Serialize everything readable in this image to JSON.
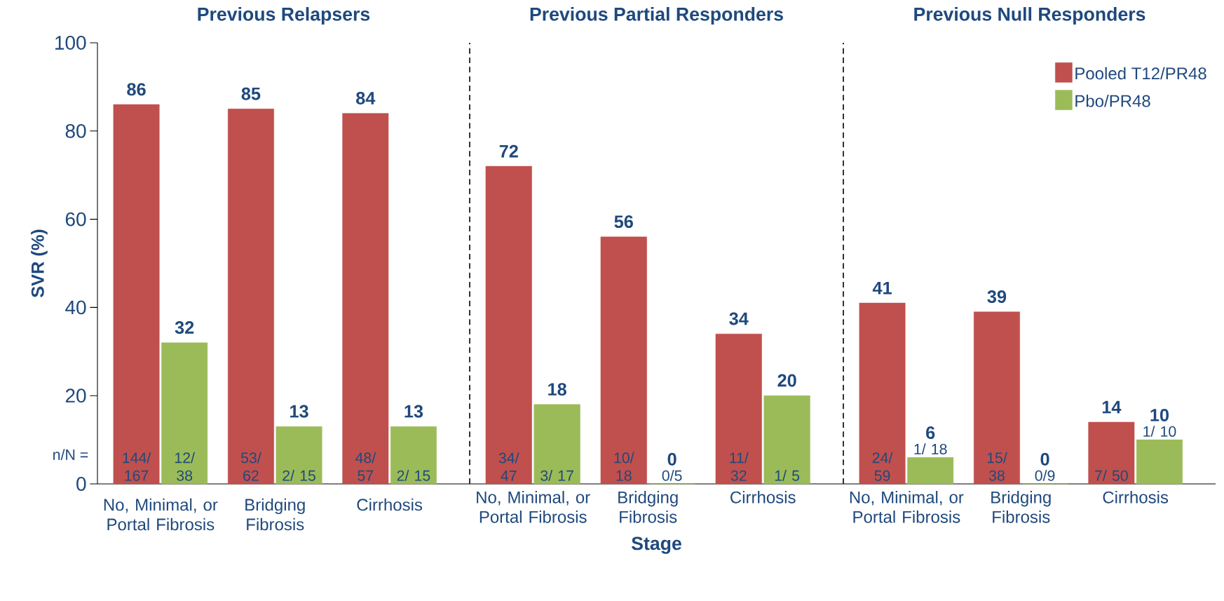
{
  "chart_data": [
    {
      "type": "bar",
      "title": "Previous Relapsers",
      "ylabel": "SVR (%)",
      "categories": [
        "No, Minimal, or Portal Fibrosis",
        "Bridging Fibrosis",
        "Cirrhosis"
      ],
      "series": [
        {
          "color": "#c0504d",
          "values": [
            86,
            85,
            84
          ]
        },
        {
          "color": "#9bbb59",
          "values": [
            32,
            13,
            13
          ]
        }
      ],
      "ylim": [
        0,
        100
      ],
      "yticks": [
        0,
        20,
        40,
        60,
        80,
        100
      ],
      "data_labels": true,
      "annotations": [
        "n/N =",
        "144/ 167",
        "12/ 38",
        "53/ 62",
        "2/ 15",
        "48/ 57",
        "2/ 15"
      ]
    },
    {
      "type": "bar",
      "title": "Previous Partial Responders",
      "xlabel": "Stage",
      "categories": [
        "No, Minimal, or Portal Fibrosis",
        "Bridging Fibrosis",
        "Cirrhosis"
      ],
      "series": [
        {
          "color": "#c0504d",
          "values": [
            72,
            56,
            34
          ]
        },
        {
          "color": "#9bbb59",
          "values": [
            18,
            0,
            20
          ]
        }
      ],
      "ylim": [
        0,
        100
      ],
      "tick_labels": "x",
      "data_labels": true,
      "annotations": [
        "34/ 47",
        "3/ 17",
        "10/ 18",
        "0/5",
        "11/ 32",
        "1/ 5"
      ]
    },
    {
      "type": "bar",
      "title": "Previous Null Responders",
      "categories": [
        "No, Minimal, or Portal Fibrosis",
        "Bridging Fibrosis",
        "Cirrhosis"
      ],
      "series": [
        {
          "name": "Pooled T12/PR48",
          "color": "#c0504d",
          "values": [
            41,
            39,
            14
          ]
        },
        {
          "name": "Pbo/PR48",
          "color": "#9bbb59",
          "values": [
            6,
            0,
            10
          ]
        }
      ],
      "ylim": [
        0,
        100
      ],
      "tick_labels": "x",
      "data_labels": true,
      "legend": "top right",
      "annotations": [
        "24/ 59",
        "1/ 18",
        "15/ 38",
        "0/9",
        "7/ 50",
        "1/ 10"
      ]
    }
  ]
}
